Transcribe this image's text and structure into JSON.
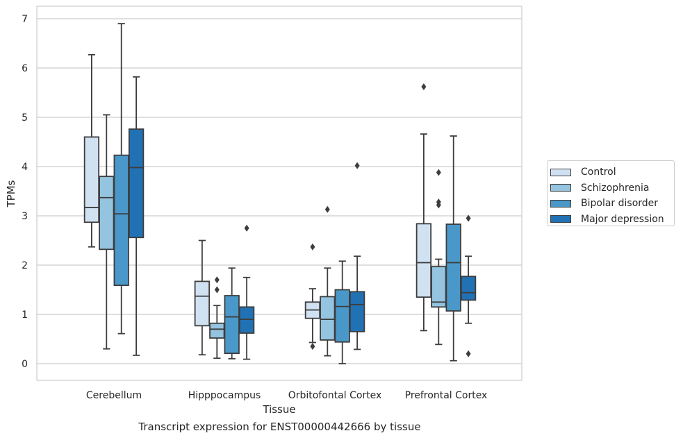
{
  "chart_data": {
    "type": "box",
    "title": "",
    "caption": "Transcript expression for ENST00000442666 by tissue",
    "xlabel": "Tissue",
    "ylabel": "TPMs",
    "ylim": [
      -0.33,
      7.27
    ],
    "yticks": [
      0,
      1,
      2,
      3,
      4,
      5,
      6,
      7
    ],
    "grid": "horizontal",
    "legend_position": "outside-right",
    "categories": [
      "Cerebellum",
      "Hipppocampus",
      "Orbitofontal Cortex",
      "Prefrontal Cortex"
    ],
    "series": [
      {
        "name": "Control",
        "color": "#d0e1f2",
        "boxes": [
          {
            "whislo": 2.37,
            "q1": 2.87,
            "med": 3.17,
            "q3": 4.6,
            "whishi": 6.27,
            "fliers": []
          },
          {
            "whislo": 0.18,
            "q1": 0.77,
            "med": 1.37,
            "q3": 1.67,
            "whishi": 2.5,
            "fliers": []
          },
          {
            "whislo": 0.43,
            "q1": 0.92,
            "med": 1.09,
            "q3": 1.25,
            "whishi": 1.52,
            "fliers": [
              2.37,
              0.35
            ]
          },
          {
            "whislo": 0.67,
            "q1": 1.35,
            "med": 2.05,
            "q3": 2.84,
            "whishi": 4.66,
            "fliers": [
              5.62
            ]
          }
        ]
      },
      {
        "name": "Schizophrenia",
        "color": "#94c4df",
        "boxes": [
          {
            "whislo": 0.3,
            "q1": 2.32,
            "med": 3.37,
            "q3": 3.8,
            "whishi": 5.05,
            "fliers": []
          },
          {
            "whislo": 0.11,
            "q1": 0.52,
            "med": 0.7,
            "q3": 0.82,
            "whishi": 1.18,
            "fliers": [
              1.7,
              1.5
            ]
          },
          {
            "whislo": 0.16,
            "q1": 0.48,
            "med": 0.9,
            "q3": 1.36,
            "whishi": 1.94,
            "fliers": [
              3.13
            ]
          },
          {
            "whislo": 0.39,
            "q1": 1.15,
            "med": 1.25,
            "q3": 1.97,
            "whishi": 2.12,
            "fliers": [
              3.88,
              3.28,
              3.22
            ]
          }
        ]
      },
      {
        "name": "Bipolar disorder",
        "color": "#4a98c9",
        "boxes": [
          {
            "whislo": 0.61,
            "q1": 1.59,
            "med": 3.04,
            "q3": 4.23,
            "whishi": 6.9,
            "fliers": []
          },
          {
            "whislo": 0.1,
            "q1": 0.21,
            "med": 0.95,
            "q3": 1.38,
            "whishi": 1.94,
            "fliers": []
          },
          {
            "whislo": 0.0,
            "q1": 0.44,
            "med": 1.16,
            "q3": 1.5,
            "whishi": 2.08,
            "fliers": []
          },
          {
            "whislo": 0.06,
            "q1": 1.07,
            "med": 2.05,
            "q3": 2.83,
            "whishi": 4.62,
            "fliers": []
          }
        ]
      },
      {
        "name": "Major depression",
        "color": "#2171b5",
        "boxes": [
          {
            "whislo": 0.17,
            "q1": 2.56,
            "med": 3.98,
            "q3": 4.76,
            "whishi": 5.82,
            "fliers": []
          },
          {
            "whislo": 0.09,
            "q1": 0.62,
            "med": 0.9,
            "q3": 1.15,
            "whishi": 1.75,
            "fliers": [
              2.75
            ]
          },
          {
            "whislo": 0.29,
            "q1": 0.65,
            "med": 1.2,
            "q3": 1.46,
            "whishi": 2.18,
            "fliers": [
              4.02
            ]
          },
          {
            "whislo": 0.82,
            "q1": 1.29,
            "med": 1.44,
            "q3": 1.77,
            "whishi": 2.18,
            "fliers": [
              2.95,
              0.2
            ]
          }
        ]
      }
    ]
  }
}
